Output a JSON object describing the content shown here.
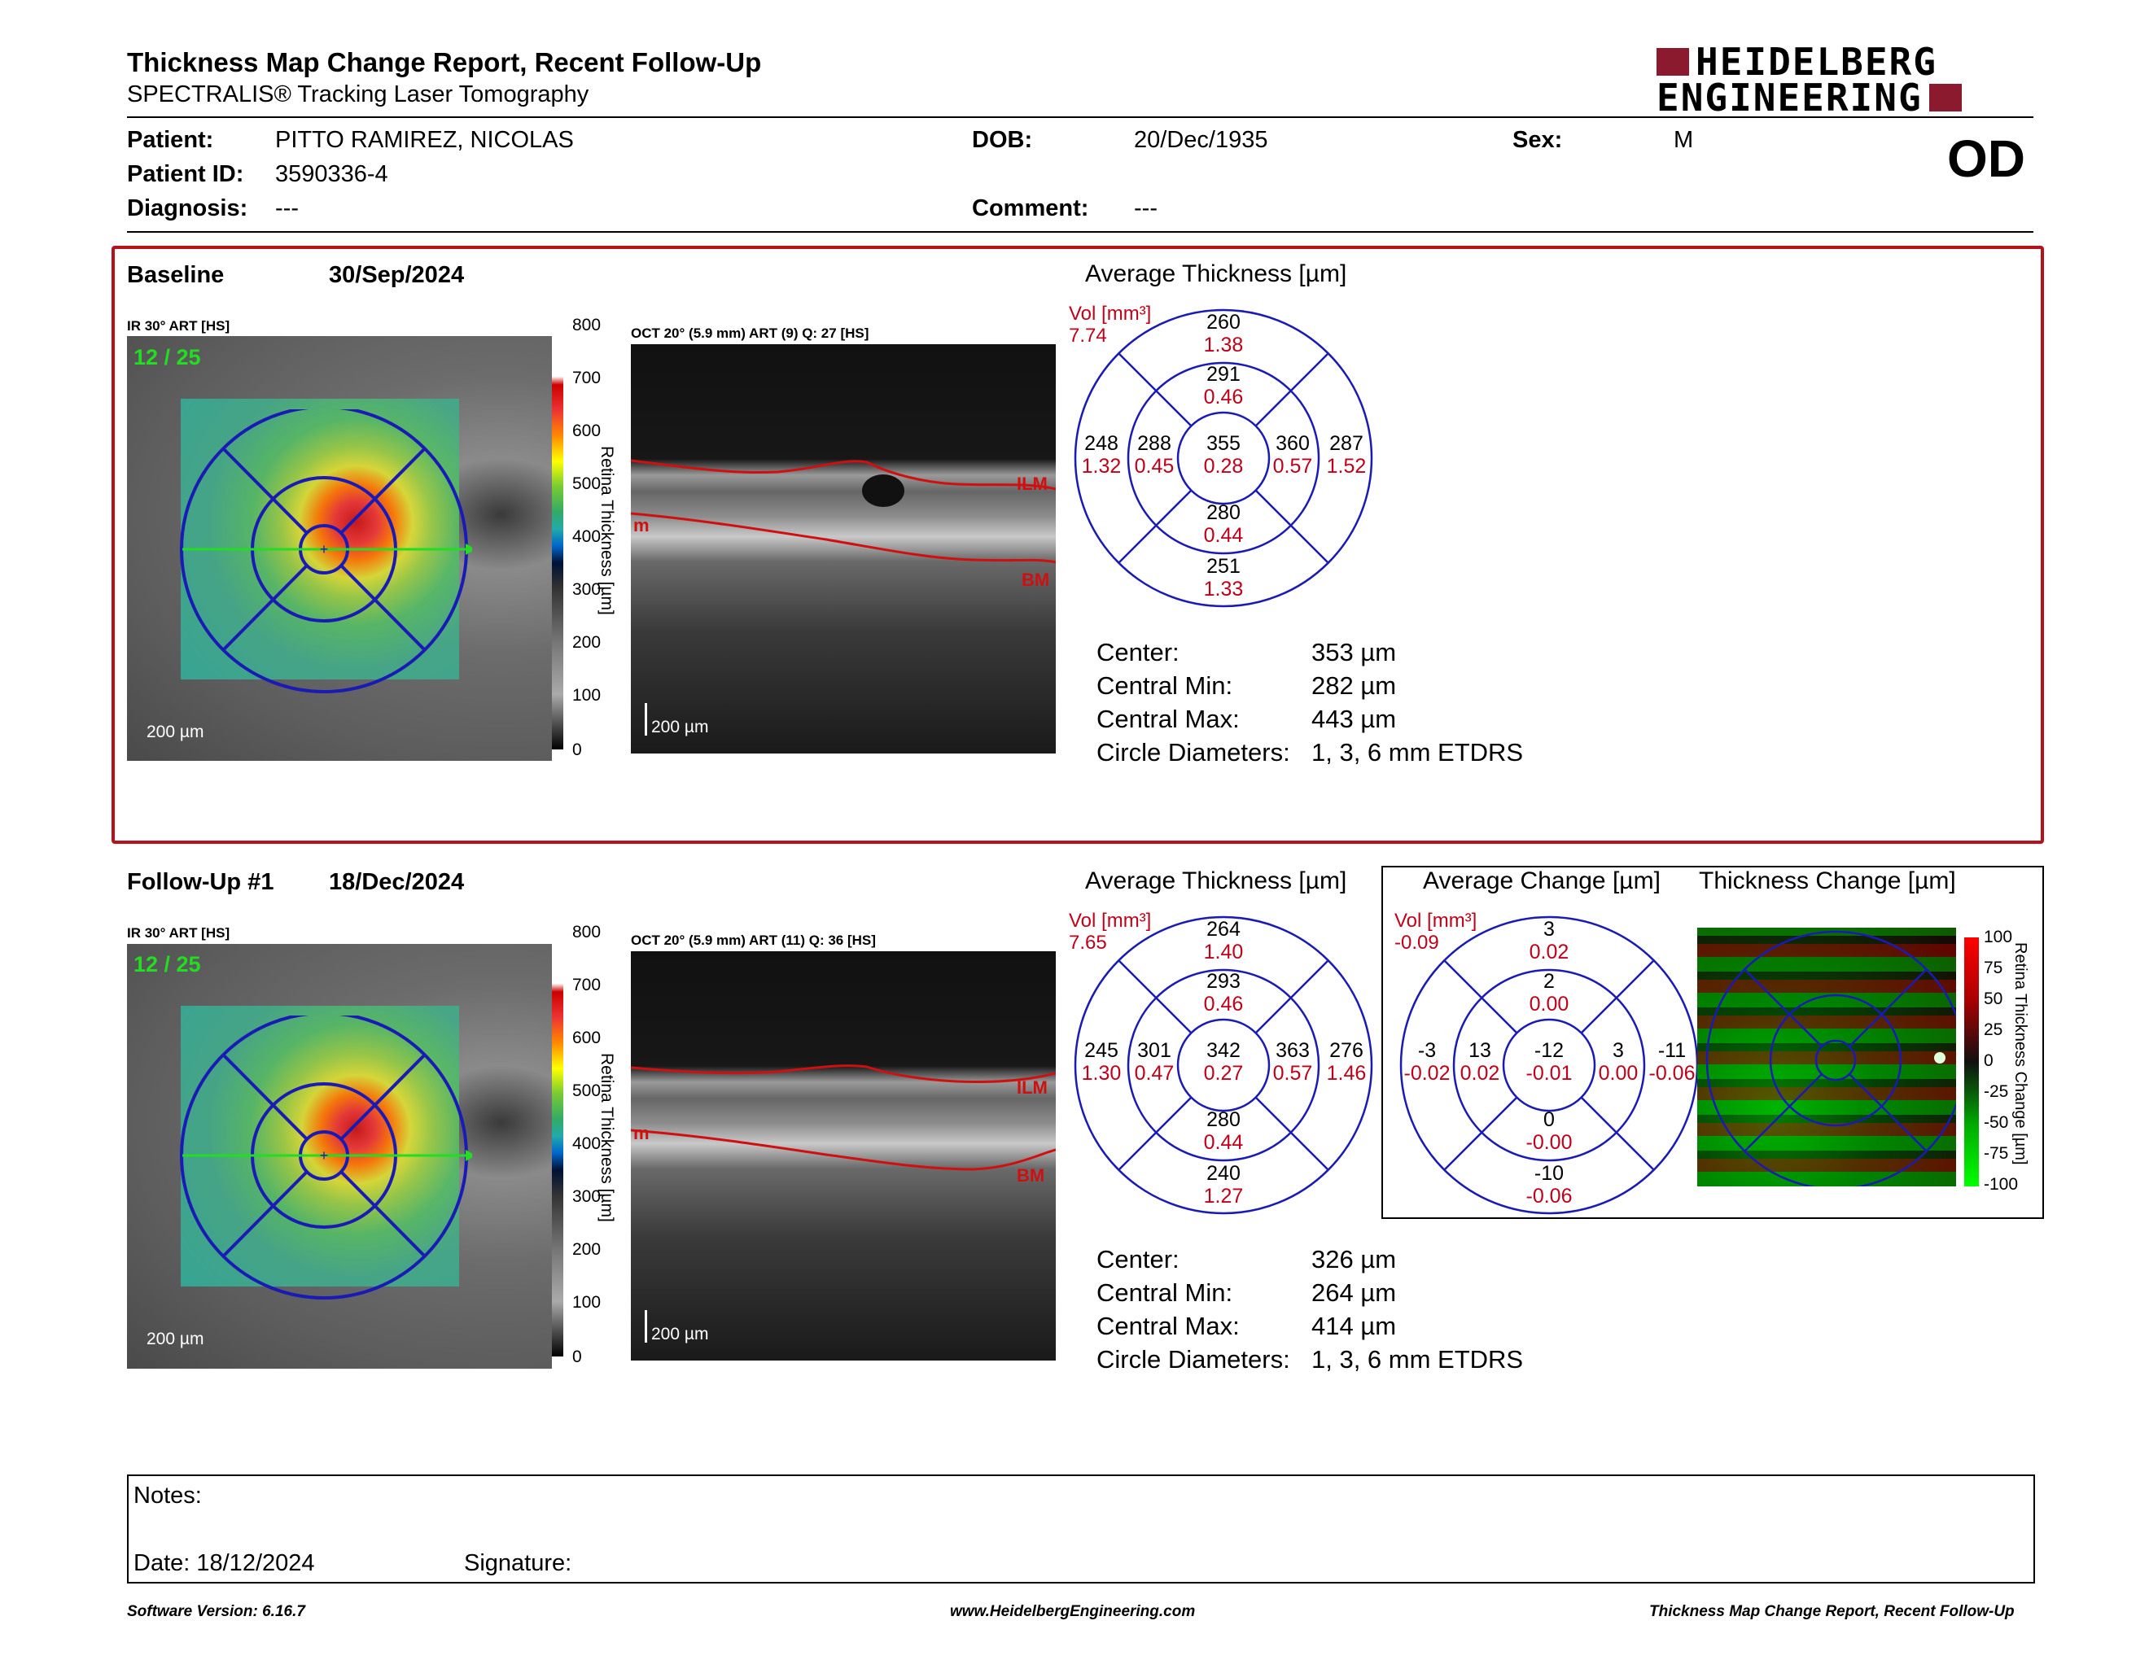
{
  "header": {
    "title": "Thickness Map Change Report, Recent Follow-Up",
    "subtitle": "SPECTRALIS® Tracking Laser Tomography",
    "logo_line1": "HEIDELBERG",
    "logo_line2": "ENGINEERING",
    "eye": "OD"
  },
  "patient": {
    "patient_label": "Patient:",
    "patient_value": "PITTO RAMIREZ, NICOLAS",
    "id_label": "Patient ID:",
    "id_value": "3590336-4",
    "diagnosis_label": "Diagnosis:",
    "diagnosis_value": "---",
    "dob_label": "DOB:",
    "dob_value": "20/Dec/1935",
    "comment_label": "Comment:",
    "comment_value": "---",
    "sex_label": "Sex:",
    "sex_value": "M"
  },
  "baseline": {
    "label": "Baseline",
    "date": "30/Sep/2024",
    "ir_caption": "IR 30° ART [HS]",
    "frame_count": "12 / 25",
    "scale_ir": "200 µm",
    "oct_caption": "OCT 20° (5.9 mm) ART (9) Q: 27 [HS]",
    "scale_oct": "200 µm",
    "ilm": "ILM",
    "bm": "BM",
    "m": "m",
    "avg_title": "Average Thickness [µm]",
    "vol_label": "Vol [mm³]",
    "vol_value": "7.74",
    "grid": {
      "outer_top": [
        "260",
        "1.38"
      ],
      "inner_top": [
        "291",
        "0.46"
      ],
      "outer_left": [
        "248",
        "1.32"
      ],
      "inner_left": [
        "288",
        "0.45"
      ],
      "center": [
        "355",
        "0.28"
      ],
      "inner_right": [
        "360",
        "0.57"
      ],
      "outer_right": [
        "287",
        "1.52"
      ],
      "inner_bottom": [
        "280",
        "0.44"
      ],
      "outer_bottom": [
        "251",
        "1.33"
      ]
    },
    "stats": [
      {
        "label": "Center:",
        "value": "353 µm"
      },
      {
        "label": "Central Min:",
        "value": "282 µm"
      },
      {
        "label": "Central Max:",
        "value": "443 µm"
      },
      {
        "label": "Circle Diameters:",
        "value": "1, 3, 6 mm ETDRS"
      }
    ]
  },
  "followup": {
    "label": "Follow-Up #1",
    "date": "18/Dec/2024",
    "ir_caption": "IR 30° ART [HS]",
    "frame_count": "12 / 25",
    "scale_ir": "200 µm",
    "oct_caption": "OCT 20° (5.9 mm) ART (11) Q: 36 [HS]",
    "scale_oct": "200 µm",
    "ilm": "ILM",
    "bm": "BM",
    "m": "m",
    "avg_title": "Average Thickness [µm]",
    "vol_label": "Vol [mm³]",
    "vol_value": "7.65",
    "grid": {
      "outer_top": [
        "264",
        "1.40"
      ],
      "inner_top": [
        "293",
        "0.46"
      ],
      "outer_left": [
        "245",
        "1.30"
      ],
      "inner_left": [
        "301",
        "0.47"
      ],
      "center": [
        "342",
        "0.27"
      ],
      "inner_right": [
        "363",
        "0.57"
      ],
      "outer_right": [
        "276",
        "1.46"
      ],
      "inner_bottom": [
        "280",
        "0.44"
      ],
      "outer_bottom": [
        "240",
        "1.27"
      ]
    },
    "stats": [
      {
        "label": "Center:",
        "value": "326 µm"
      },
      {
        "label": "Central Min:",
        "value": "264 µm"
      },
      {
        "label": "Central Max:",
        "value": "414 µm"
      },
      {
        "label": "Circle Diameters:",
        "value": "1, 3, 6 mm ETDRS"
      }
    ],
    "change_title": "Average Change [µm]",
    "thick_change_title": "Thickness Change [µm]",
    "change_vol_label": "Vol [mm³]",
    "change_vol_value": "-0.09",
    "change_grid": {
      "outer_top": [
        "3",
        "0.02"
      ],
      "inner_top": [
        "2",
        "0.00"
      ],
      "outer_left": [
        "-3",
        "-0.02"
      ],
      "inner_left": [
        "13",
        "0.02"
      ],
      "center": [
        "-12",
        "-0.01"
      ],
      "inner_right": [
        "3",
        "0.00"
      ],
      "outer_right": [
        "-11",
        "-0.06"
      ],
      "inner_bottom": [
        "0",
        "-0.00"
      ],
      "outer_bottom": [
        "-10",
        "-0.06"
      ]
    }
  },
  "colorbar": {
    "ticks": [
      "800",
      "700",
      "600",
      "500",
      "400",
      "300",
      "200",
      "100",
      "0"
    ],
    "label": "Retina Thickness [µm]"
  },
  "change_colorbar": {
    "ticks": [
      "100",
      "75",
      "50",
      "25",
      "0",
      "-25",
      "-50",
      "-75",
      "-100"
    ],
    "label": "Retina Thickness Change [µm]"
  },
  "notes": {
    "notes_label": "Notes:",
    "date_label": "Date: 18/12/2024",
    "signature_label": "Signature:"
  },
  "footer": {
    "left": "Software Version: 6.16.7",
    "center": "www.HeidelbergEngineering.com",
    "right": "Thickness Map Change Report, Recent Follow-Up"
  },
  "colors": {
    "section_border": "#b5121b",
    "grid_blue": "#1a1ab5",
    "volume_red": "#c0001a",
    "logo_red": "#8b1a2e"
  }
}
